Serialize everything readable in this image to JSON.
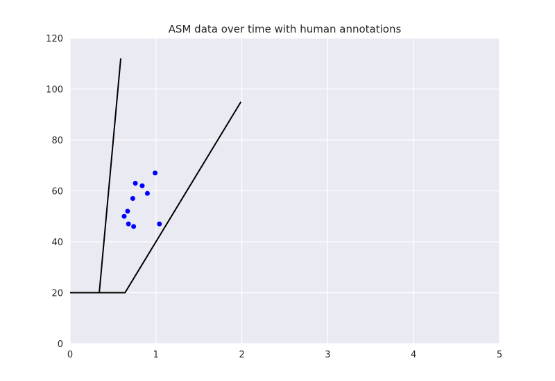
{
  "chart_data": {
    "type": "scatter",
    "title": "ASM data over time with human annotations",
    "xlabel": "",
    "ylabel": "",
    "xlim": [
      0,
      5
    ],
    "ylim": [
      0,
      120
    ],
    "x_ticks": [
      "0",
      "1",
      "2",
      "3",
      "4",
      "5"
    ],
    "y_ticks": [
      "0",
      "20",
      "40",
      "60",
      "80",
      "100",
      "120"
    ],
    "grid": true,
    "style": {
      "background": "#eaeaf2",
      "grid_color": "#ffffff",
      "point_color": "#0000ff",
      "line_color": "#000000"
    },
    "series": [
      {
        "kind": "scatter",
        "points": [
          {
            "x": 0.63,
            "y": 50
          },
          {
            "x": 0.67,
            "y": 52
          },
          {
            "x": 0.68,
            "y": 47
          },
          {
            "x": 0.73,
            "y": 57
          },
          {
            "x": 0.74,
            "y": 46
          },
          {
            "x": 0.76,
            "y": 63
          },
          {
            "x": 0.84,
            "y": 62
          },
          {
            "x": 0.9,
            "y": 59
          },
          {
            "x": 0.99,
            "y": 67
          },
          {
            "x": 1.04,
            "y": 47
          }
        ]
      },
      {
        "kind": "line",
        "points": [
          {
            "x": 0,
            "y": 20
          },
          {
            "x": 0.34,
            "y": 20
          },
          {
            "x": 0.59,
            "y": 112
          }
        ]
      },
      {
        "kind": "line",
        "points": [
          {
            "x": 0,
            "y": 20
          },
          {
            "x": 0.64,
            "y": 20
          },
          {
            "x": 1.99,
            "y": 95
          }
        ]
      }
    ]
  }
}
